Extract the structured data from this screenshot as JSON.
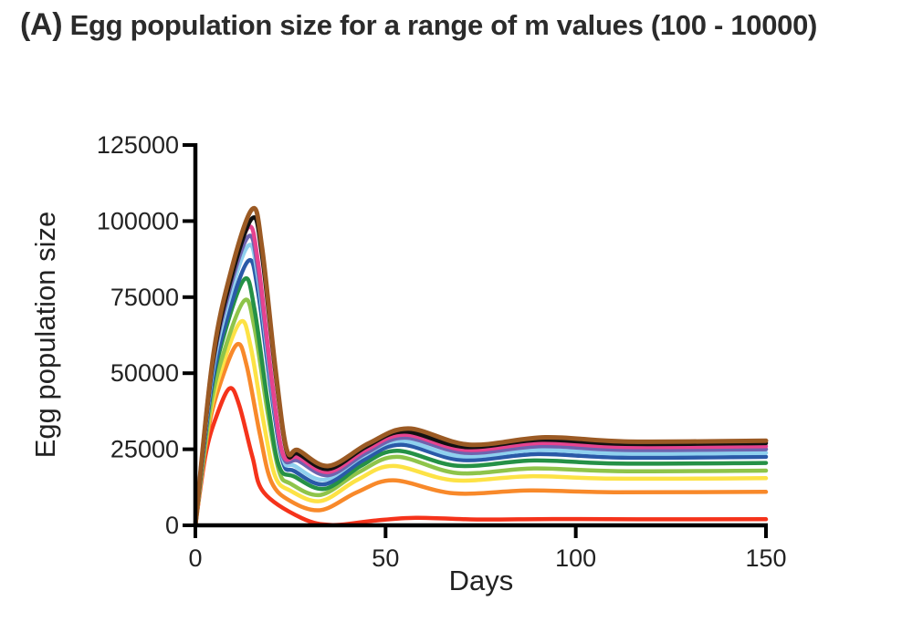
{
  "title_panel": "(A)",
  "title_text": "Egg population size for a range of m values (100 - 10000)",
  "chart_data": {
    "type": "line",
    "title": "Egg population size for a range of m values (100 - 10000)",
    "xlabel": "Days",
    "ylabel": "Egg population size",
    "xlim": [
      0,
      150
    ],
    "ylim": [
      0,
      125000
    ],
    "x_ticks": [
      0,
      50,
      100,
      150
    ],
    "y_ticks": [
      0,
      25000,
      50000,
      75000,
      100000,
      125000
    ],
    "y_tick_labels": [
      "0",
      "25000",
      "50000",
      "75000",
      "100000",
      "125000"
    ],
    "grid": false,
    "legend": "none",
    "series": [
      {
        "color": "#f5331b",
        "peak_day": 9,
        "peak": 45000,
        "trough_day": 36,
        "trough": 100,
        "osc_day": 58,
        "osc": 2500,
        "steady": 2000
      },
      {
        "color": "#f8892a",
        "peak_day": 11,
        "peak": 59500,
        "trough_day": 33,
        "trough": 5000,
        "osc_day": 52,
        "osc": 14800,
        "steady": 11000
      },
      {
        "color": "#fde245",
        "peak_day": 12,
        "peak": 67000,
        "trough_day": 33,
        "trough": 8000,
        "osc_day": 52,
        "osc": 19500,
        "steady": 15500
      },
      {
        "color": "#8ec44a",
        "peak_day": 13,
        "peak": 74000,
        "trough_day": 33,
        "trough": 10000,
        "osc_day": 53,
        "osc": 22500,
        "steady": 18000
      },
      {
        "color": "#259146",
        "peak_day": 13,
        "peak": 81000,
        "trough_day": 34,
        "trough": 12000,
        "osc_day": 53,
        "osc": 24500,
        "steady": 20500
      },
      {
        "color": "#2a5aa8",
        "peak_day": 14,
        "peak": 87000,
        "trough_day": 34,
        "trough": 13500,
        "osc_day": 54,
        "osc": 26500,
        "steady": 22500
      },
      {
        "color": "#8fd0ee",
        "peak_day": 14,
        "peak": 92000,
        "trough_day": 34,
        "trough": 15000,
        "osc_day": 54,
        "osc": 27800,
        "steady": 23800
      },
      {
        "color": "#6e63ae",
        "peak_day": 14,
        "peak": 95000,
        "trough_day": 35,
        "trough": 16500,
        "osc_day": 55,
        "osc": 28800,
        "steady": 25000
      },
      {
        "color": "#e6438f",
        "peak_day": 14,
        "peak": 98000,
        "trough_day": 35,
        "trough": 17500,
        "osc_day": 55,
        "osc": 29800,
        "steady": 26000
      },
      {
        "color": "#111111",
        "peak_day": 15,
        "peak": 101000,
        "trough_day": 35,
        "trough": 18500,
        "osc_day": 55,
        "osc": 30800,
        "steady": 27000
      },
      {
        "color": "#9b5a24",
        "peak_day": 15,
        "peak": 104000,
        "trough_day": 35,
        "trough": 19500,
        "osc_day": 56,
        "osc": 31800,
        "steady": 27800
      }
    ]
  }
}
